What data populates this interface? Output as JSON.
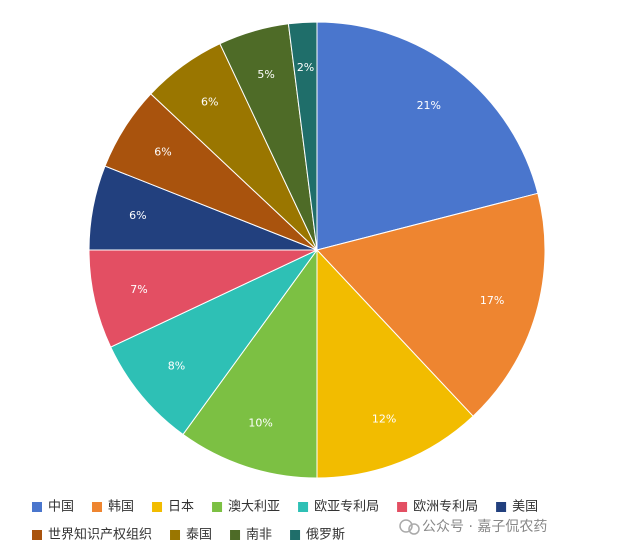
{
  "chart_data": {
    "type": "pie",
    "categories": [
      "中国",
      "韩国",
      "日本",
      "澳大利亚",
      "欧亚专利局",
      "欧洲专利局",
      "美国",
      "世界知识产权组织",
      "泰国",
      "南非",
      "俄罗斯"
    ],
    "values": [
      21,
      17,
      12,
      10,
      8,
      7,
      6,
      6,
      6,
      5,
      2
    ],
    "value_labels": [
      "21%",
      "17%",
      "12%",
      "10%",
      "8%",
      "7%",
      "6%",
      "6%",
      "6%",
      "5%",
      "2%"
    ],
    "colors": [
      "#4a76cd",
      "#ee8530",
      "#f2bc00",
      "#7cc043",
      "#2ec0b5",
      "#e34f63",
      "#22407e",
      "#a9530d",
      "#9a7600",
      "#4e6b27",
      "#1f6e6a"
    ],
    "watermark": "公众号 · 嘉子侃农药"
  }
}
